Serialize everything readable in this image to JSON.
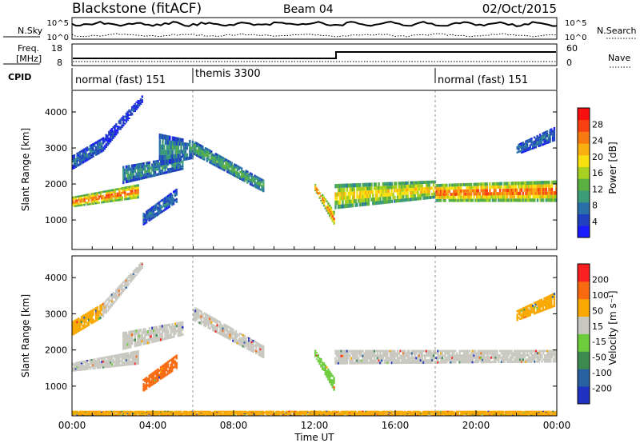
{
  "header": {
    "station": "Blackstone (fitACF)",
    "beam": "Beam 04",
    "date": "02/Oct/2015"
  },
  "noise_panel": {
    "left_label": "N.Sky",
    "right_label": "N.Search",
    "left_ticks": [
      "10^5",
      "10^0"
    ],
    "right_ticks": [
      "10^5",
      "10^0"
    ]
  },
  "freq_panel": {
    "left_label_line1": "Freq.",
    "left_label_line2": "[MHz]",
    "right_label": "Nave",
    "left_ticks": [
      "18",
      "8"
    ],
    "right_ticks": [
      "60",
      "0"
    ]
  },
  "cpid_panel": {
    "label": "CPID",
    "segments": [
      {
        "label": "normal (fast) 151",
        "start_hour": 0,
        "end_hour": 6
      },
      {
        "label": "themis 3300",
        "start_hour": 6,
        "end_hour": 18
      },
      {
        "label": "normal (fast) 151",
        "start_hour": 18,
        "end_hour": 24
      }
    ]
  },
  "chart_data": [
    {
      "type": "heatmap",
      "name": "power",
      "ylabel": "Slant Range [km]",
      "ylim": [
        180,
        4600
      ],
      "yticks": [
        "1000",
        "2000",
        "3000",
        "4000"
      ],
      "ytick_values": [
        1000,
        2000,
        3000,
        4000
      ],
      "colorbar_label": "Power [dB]",
      "colorbar_ticks": [
        "28",
        "24",
        "20",
        "16",
        "12",
        "8",
        "4"
      ],
      "colorbar_colors": [
        "#1a1aff",
        "#2040c0",
        "#2a70a8",
        "#3c9c78",
        "#5ab040",
        "#a8d020",
        "#f8e010",
        "#f8b010",
        "#f87a10",
        "#f84010",
        "#f81010"
      ],
      "bands": [
        {
          "x": [
            0,
            3.3
          ],
          "y0": [
            1350,
            1600
          ],
          "y1": [
            1650,
            2000
          ],
          "level": 9
        },
        {
          "x": [
            0,
            1.5
          ],
          "y0": [
            2400,
            2900
          ],
          "y1": [
            2800,
            3300
          ],
          "level": 2
        },
        {
          "x": [
            1.5,
            3.5
          ],
          "y0": [
            2900,
            4300
          ],
          "y1": [
            3300,
            4500
          ],
          "level": 1
        },
        {
          "x": [
            2.5,
            5.5
          ],
          "y0": [
            2000,
            2400
          ],
          "y1": [
            2500,
            2800
          ],
          "level": 3
        },
        {
          "x": [
            3.5,
            5.2
          ],
          "y0": [
            850,
            1500
          ],
          "y1": [
            1200,
            1900
          ],
          "level": 2
        },
        {
          "x": [
            4.3,
            6.0
          ],
          "y0": [
            2500,
            2700
          ],
          "y1": [
            3400,
            3200
          ],
          "level": 3
        },
        {
          "x": [
            6.0,
            9.5
          ],
          "y0": [
            2800,
            1750
          ],
          "y1": [
            3200,
            2100
          ],
          "level": 4
        },
        {
          "x": [
            12.0,
            13.0
          ],
          "y0": [
            1800,
            800
          ],
          "y1": [
            2000,
            1200
          ],
          "level": 9
        },
        {
          "x": [
            13.0,
            18.0
          ],
          "y0": [
            1300,
            1600
          ],
          "y1": [
            2000,
            2100
          ],
          "level": 7
        },
        {
          "x": [
            18.0,
            24.0
          ],
          "y0": [
            1500,
            1500
          ],
          "y1": [
            2000,
            2100
          ],
          "level": 9
        },
        {
          "x": [
            22.0,
            23.9
          ],
          "y0": [
            2800,
            3200
          ],
          "y1": [
            3100,
            3600
          ],
          "level": 2
        }
      ],
      "color_by": "level"
    },
    {
      "type": "heatmap",
      "name": "velocity",
      "ylabel": "Slant Range [km]",
      "ylim": [
        180,
        4600
      ],
      "yticks": [
        "1000",
        "2000",
        "3000",
        "4000"
      ],
      "ytick_values": [
        1000,
        2000,
        3000,
        4000
      ],
      "xlabel": "Time UT",
      "xticks": [
        "00:00",
        "04:00",
        "08:00",
        "12:00",
        "16:00",
        "20:00",
        "00:00"
      ],
      "xtick_values": [
        0,
        4,
        8,
        12,
        16,
        20,
        24
      ],
      "colorbar_label": "Velocity [m s⁻¹]",
      "colorbar_ticks": [
        "200",
        "100",
        "50",
        "15",
        "-15",
        "-50",
        "-100",
        "-200"
      ],
      "colorbar_colors": [
        "#2030c0",
        "#2860a0",
        "#3c8a50",
        "#6ccc3c",
        "#c8c8c0",
        "#f8a800",
        "#f86a10",
        "#f82020"
      ],
      "ground_scatter_color": "#c8c8c0",
      "bands": [
        {
          "x": [
            0,
            3.3
          ],
          "y0": [
            1400,
            1600
          ],
          "y1": [
            1650,
            2000
          ],
          "level": 4
        },
        {
          "x": [
            0,
            1.5
          ],
          "y0": [
            2400,
            2900
          ],
          "y1": [
            2800,
            3300
          ],
          "level": 5
        },
        {
          "x": [
            1.5,
            3.5
          ],
          "y0": [
            2900,
            4300
          ],
          "y1": [
            3300,
            4500
          ],
          "level": 4
        },
        {
          "x": [
            2.5,
            5.5
          ],
          "y0": [
            2000,
            2400
          ],
          "y1": [
            2500,
            2800
          ],
          "level": 4
        },
        {
          "x": [
            3.5,
            5.2
          ],
          "y0": [
            850,
            1500
          ],
          "y1": [
            1200,
            1900
          ],
          "level": 6
        },
        {
          "x": [
            6.0,
            9.5
          ],
          "y0": [
            2800,
            1750
          ],
          "y1": [
            3200,
            2100
          ],
          "level": 4
        },
        {
          "x": [
            12.0,
            13.0
          ],
          "y0": [
            1800,
            800
          ],
          "y1": [
            2000,
            1200
          ],
          "level": 3
        },
        {
          "x": [
            13.0,
            24.0
          ],
          "y0": [
            1600,
            1650
          ],
          "y1": [
            2000,
            2000
          ],
          "level": 4
        },
        {
          "x": [
            22.0,
            23.9
          ],
          "y0": [
            2800,
            3200
          ],
          "y1": [
            3100,
            3600
          ],
          "level": 5
        },
        {
          "x": [
            0,
            24.0
          ],
          "y0": [
            200,
            200
          ],
          "y1": [
            320,
            320
          ],
          "level": 5
        }
      ],
      "color_by": "level"
    }
  ]
}
